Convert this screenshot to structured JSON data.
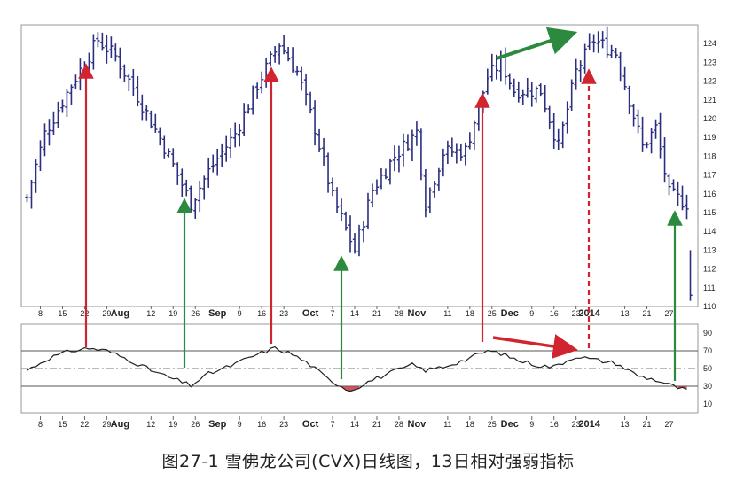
{
  "caption": "图27-1 雪佛龙公司(CVX)日线图，13日相对强弱指标",
  "chart_data": [
    {
      "type": "ohlc",
      "ylim": [
        110,
        125
      ],
      "y_ticks": [
        110,
        111,
        112,
        113,
        114,
        115,
        116,
        117,
        118,
        119,
        120,
        121,
        122,
        123,
        124
      ],
      "x_labels": [
        {
          "i": 3,
          "text": "8"
        },
        {
          "i": 8,
          "text": "15"
        },
        {
          "i": 13,
          "text": "22"
        },
        {
          "i": 18,
          "text": "29"
        },
        {
          "i": 21,
          "text": "Aug",
          "month": true
        },
        {
          "i": 28,
          "text": "12"
        },
        {
          "i": 33,
          "text": "19"
        },
        {
          "i": 38,
          "text": "26"
        },
        {
          "i": 43,
          "text": "Sep",
          "month": true
        },
        {
          "i": 48,
          "text": "9"
        },
        {
          "i": 53,
          "text": "16"
        },
        {
          "i": 58,
          "text": "23"
        },
        {
          "i": 64,
          "text": "Oct",
          "month": true
        },
        {
          "i": 69,
          "text": "7"
        },
        {
          "i": 74,
          "text": "14"
        },
        {
          "i": 79,
          "text": "21"
        },
        {
          "i": 84,
          "text": "28"
        },
        {
          "i": 88,
          "text": "Nov",
          "month": true
        },
        {
          "i": 95,
          "text": "11"
        },
        {
          "i": 100,
          "text": "18"
        },
        {
          "i": 105,
          "text": "25"
        },
        {
          "i": 109,
          "text": "Dec",
          "month": true
        },
        {
          "i": 114,
          "text": "9"
        },
        {
          "i": 119,
          "text": "16"
        },
        {
          "i": 124,
          "text": "23"
        },
        {
          "i": 127,
          "text": "2014",
          "month": true
        },
        {
          "i": 135,
          "text": "13"
        },
        {
          "i": 140,
          "text": "21"
        },
        {
          "i": 145,
          "text": "27"
        }
      ],
      "n_bars": 150,
      "turning_points": [
        [
          0,
          115.8
        ],
        [
          4,
          119.2
        ],
        [
          10,
          121.8
        ],
        [
          16,
          124.2
        ],
        [
          20,
          123.3
        ],
        [
          25,
          121.2
        ],
        [
          31,
          118.5
        ],
        [
          37,
          115.5
        ],
        [
          41,
          117.2
        ],
        [
          47,
          119.2
        ],
        [
          52,
          121.8
        ],
        [
          57,
          124.0
        ],
        [
          61,
          122.5
        ],
        [
          65,
          119.5
        ],
        [
          69,
          115.8
        ],
        [
          74,
          113.0
        ],
        [
          78,
          116.2
        ],
        [
          83,
          118.0
        ],
        [
          88,
          119.3
        ],
        [
          90,
          115.5
        ],
        [
          94,
          118.2
        ],
        [
          99,
          118.3
        ],
        [
          104,
          122.2
        ],
        [
          107,
          123.0
        ],
        [
          110,
          121.5
        ],
        [
          116,
          121.5
        ],
        [
          120,
          118.5
        ],
        [
          124,
          122.5
        ],
        [
          128,
          124.2
        ],
        [
          133,
          123.5
        ],
        [
          136,
          121.0
        ],
        [
          139,
          118.5
        ],
        [
          142,
          119.5
        ],
        [
          145,
          116.0
        ],
        [
          149,
          115.5
        ]
      ],
      "late_bar": {
        "high": 113.0,
        "low": 110.3,
        "close": 110.6
      },
      "bar_color": "#2b2f7e"
    },
    {
      "type": "line",
      "name": "RSI(13)",
      "ylim": [
        0,
        100
      ],
      "y_ticks": [
        10,
        30,
        50,
        70,
        90
      ],
      "ref_levels": [
        30,
        50,
        70
      ],
      "turning_points": [
        [
          0,
          48
        ],
        [
          5,
          62
        ],
        [
          10,
          70
        ],
        [
          14,
          73
        ],
        [
          18,
          70
        ],
        [
          23,
          60
        ],
        [
          28,
          48
        ],
        [
          32,
          40
        ],
        [
          37,
          31
        ],
        [
          41,
          44
        ],
        [
          46,
          53
        ],
        [
          51,
          64
        ],
        [
          56,
          73
        ],
        [
          60,
          66
        ],
        [
          64,
          54
        ],
        [
          68,
          38
        ],
        [
          73,
          25
        ],
        [
          77,
          35
        ],
        [
          82,
          45
        ],
        [
          87,
          54
        ],
        [
          90,
          48
        ],
        [
          94,
          52
        ],
        [
          99,
          60
        ],
        [
          104,
          70
        ],
        [
          107,
          67
        ],
        [
          111,
          59
        ],
        [
          116,
          53
        ],
        [
          119,
          52
        ],
        [
          124,
          64
        ],
        [
          128,
          60
        ],
        [
          133,
          56
        ],
        [
          138,
          42
        ],
        [
          142,
          37
        ],
        [
          146,
          30
        ],
        [
          149,
          25
        ]
      ],
      "line_color": "#222222",
      "oversold_fill": "#c0393f"
    }
  ]
}
